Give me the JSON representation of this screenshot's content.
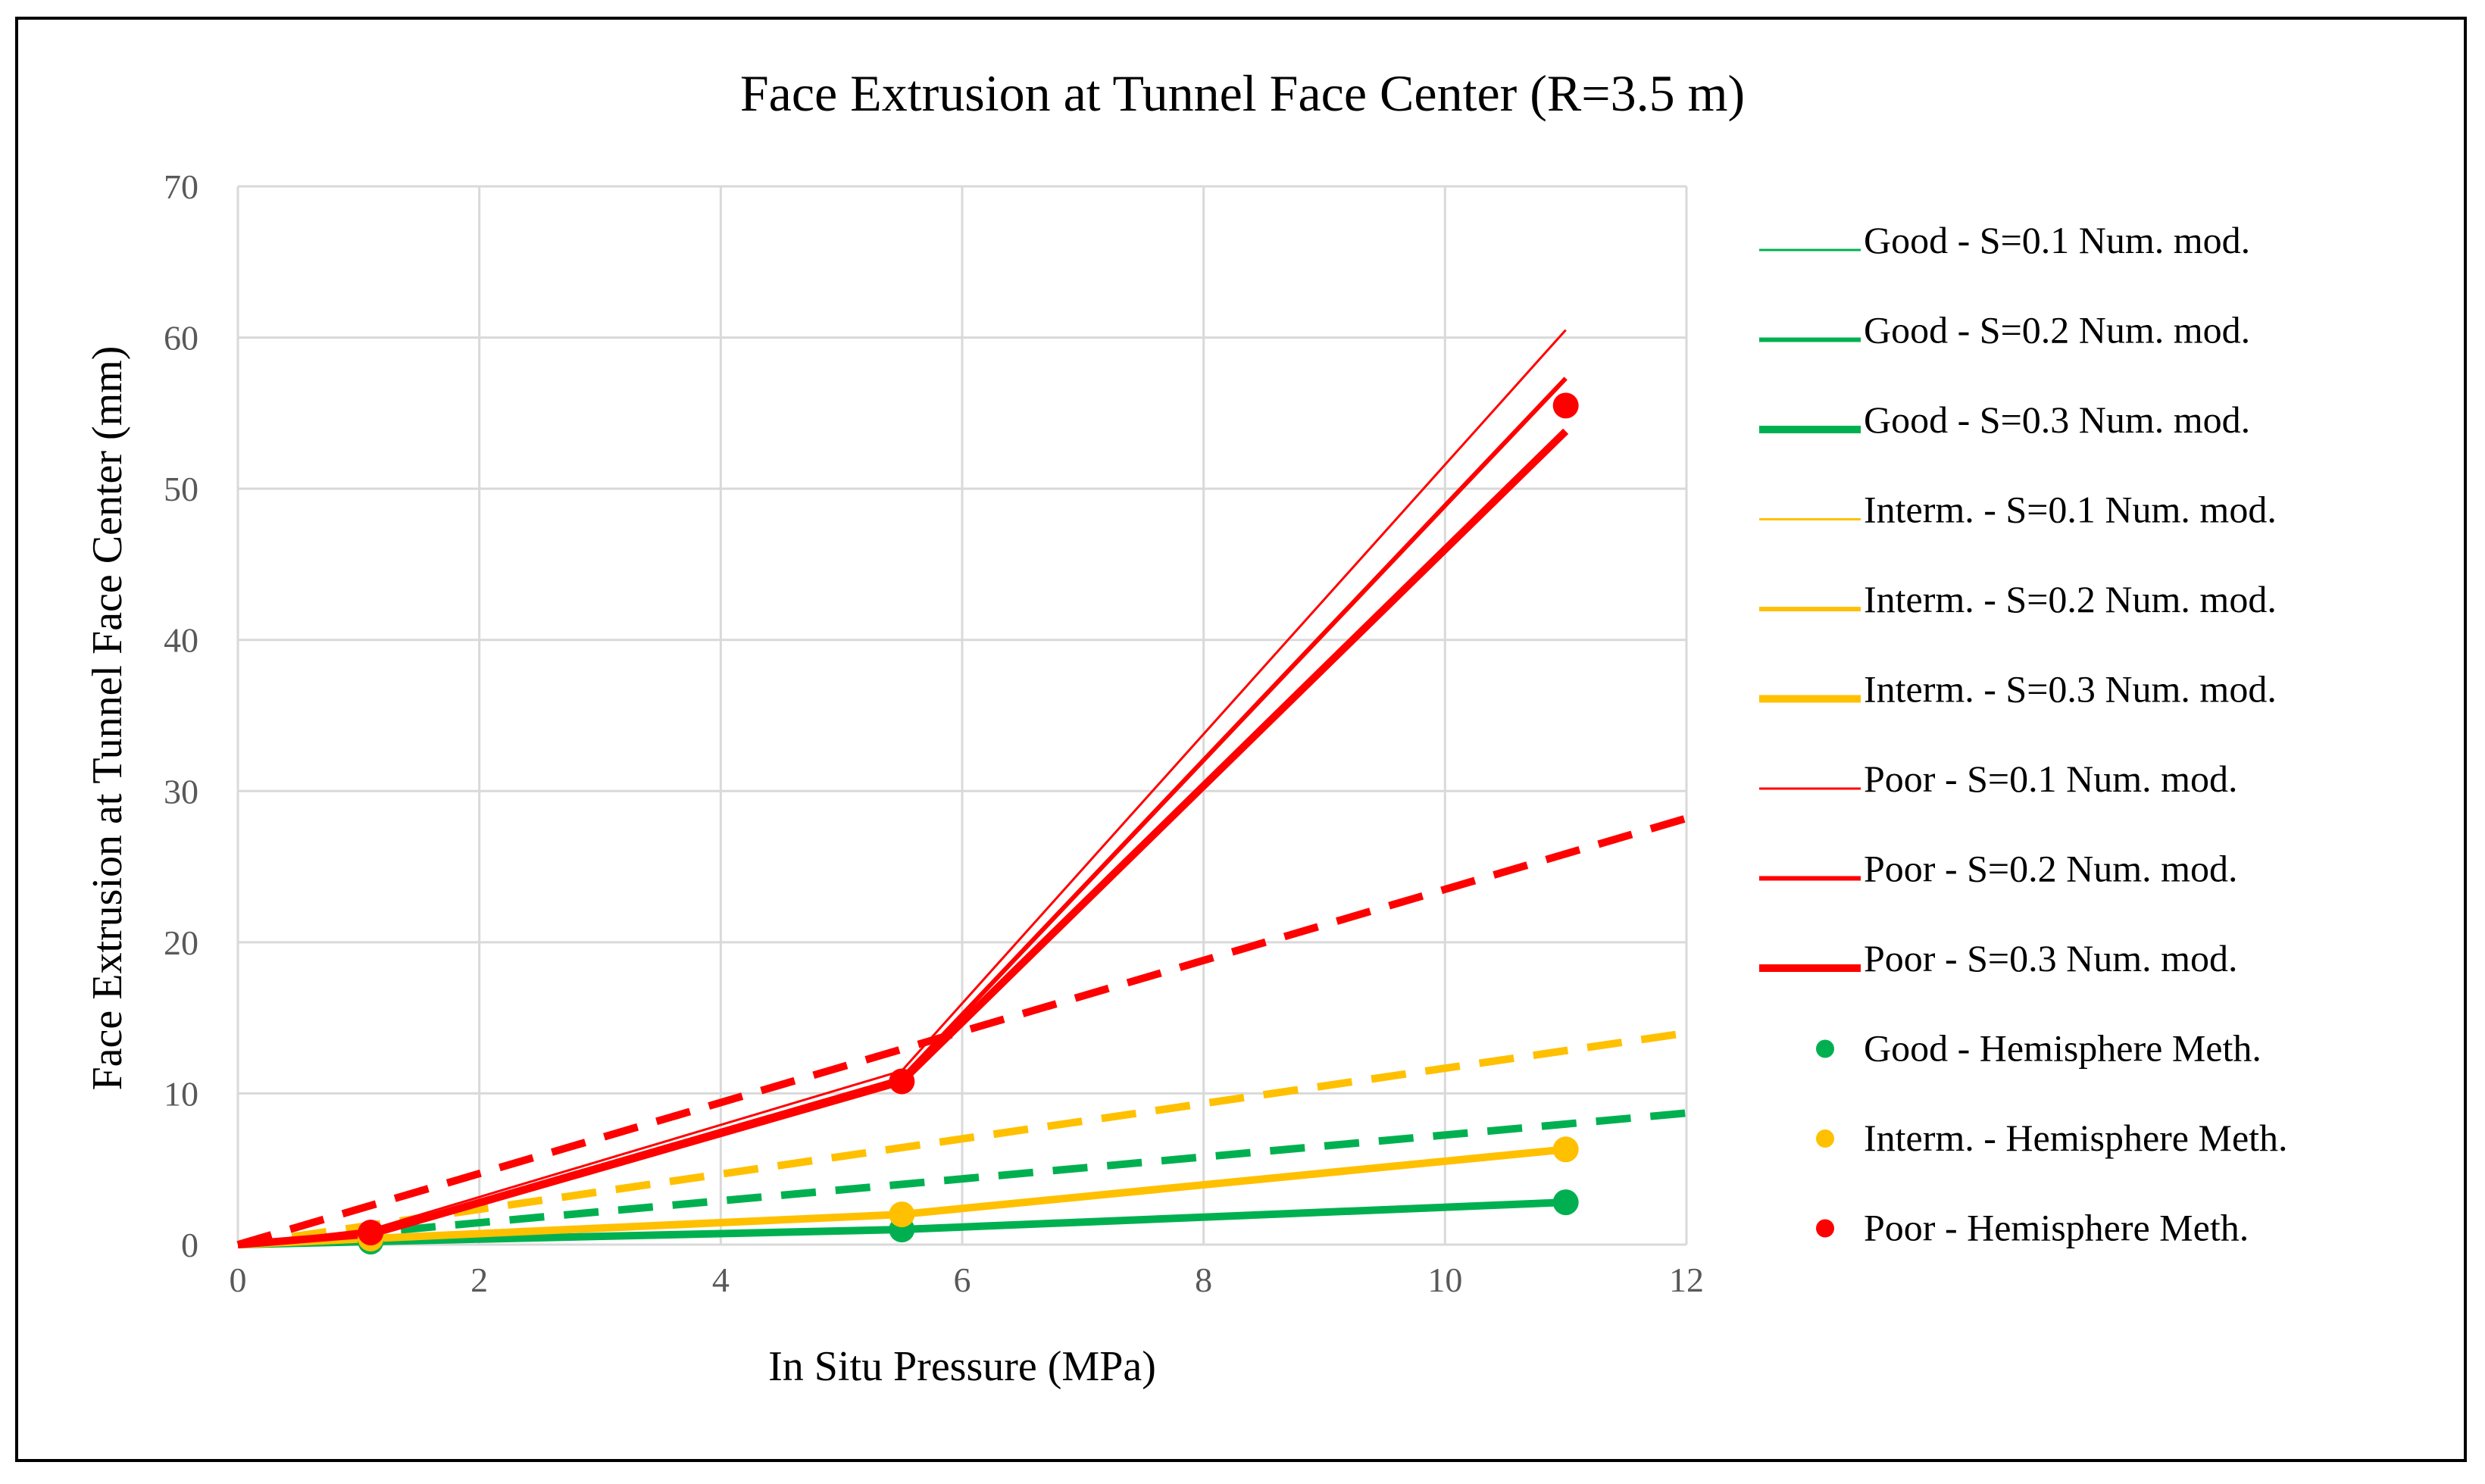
{
  "chart_data": {
    "type": "line",
    "title": "Face Extrusion at Tunnel Face Center (R=3.5 m)",
    "xlabel": "In Situ Pressure (MPa)",
    "ylabel": "Face Extrusion at Tunnel Face Center (mm)",
    "xlim": [
      0,
      12
    ],
    "ylim": [
      0,
      70
    ],
    "xticks": [
      0,
      2,
      4,
      6,
      8,
      10,
      12
    ],
    "yticks": [
      0,
      10,
      20,
      30,
      40,
      50,
      60,
      70
    ],
    "grid": true,
    "legend_position": "right",
    "colors": {
      "good": "#00b050",
      "interm": "#ffc000",
      "poor": "#ff0000",
      "grid": "#d9d9d9",
      "axis_text": "#595959"
    },
    "series": [
      {
        "name": "Good - S=0.1 Num. mod.",
        "rock": "good",
        "kind": "line",
        "weight": 1,
        "x": [
          0,
          1.1,
          5.5,
          11
        ],
        "y": [
          0,
          0.2,
          1.0,
          2.8
        ]
      },
      {
        "name": "Good - S=0.2 Num. mod.",
        "rock": "good",
        "kind": "line",
        "weight": 2,
        "x": [
          0,
          1.1,
          5.5,
          11
        ],
        "y": [
          0,
          0.2,
          1.0,
          2.8
        ]
      },
      {
        "name": "Good - S=0.3 Num. mod.",
        "rock": "good",
        "kind": "line",
        "weight": 3,
        "x": [
          0,
          1.1,
          5.5,
          11
        ],
        "y": [
          0,
          0.2,
          1.0,
          2.8
        ]
      },
      {
        "name": "Interm.  - S=0.1 Num. mod.",
        "rock": "interm",
        "kind": "line",
        "weight": 1,
        "x": [
          0,
          1.1,
          5.5,
          11
        ],
        "y": [
          0,
          0.4,
          2.0,
          6.3
        ]
      },
      {
        "name": "Interm.  - S=0.2 Num. mod.",
        "rock": "interm",
        "kind": "line",
        "weight": 2,
        "x": [
          0,
          1.1,
          5.5,
          11
        ],
        "y": [
          0,
          0.4,
          2.0,
          6.3
        ]
      },
      {
        "name": "Interm. - S=0.3 Num. mod.",
        "rock": "interm",
        "kind": "line",
        "weight": 3,
        "x": [
          0,
          1.1,
          5.5,
          11
        ],
        "y": [
          0,
          0.4,
          2.0,
          6.3
        ]
      },
      {
        "name": "Poor - S=0.1 Num. mod.",
        "rock": "poor",
        "kind": "line",
        "weight": 1,
        "x": [
          0,
          1.1,
          5.5,
          11
        ],
        "y": [
          0,
          1.0,
          11.5,
          60.5
        ]
      },
      {
        "name": "Poor - S=0.2 Num. mod.",
        "rock": "poor",
        "kind": "line",
        "weight": 2,
        "x": [
          0,
          1.1,
          5.5,
          11
        ],
        "y": [
          0,
          0.8,
          11.0,
          57.3
        ]
      },
      {
        "name": "Poor - S=0.3 Num. mod.",
        "rock": "poor",
        "kind": "line",
        "weight": 3,
        "x": [
          0,
          1.1,
          5.5,
          11
        ],
        "y": [
          0,
          0.7,
          10.8,
          53.8
        ]
      },
      {
        "name": "Good - Hemisphere Meth.",
        "rock": "good",
        "kind": "points",
        "x": [
          1.1,
          5.5,
          11
        ],
        "y": [
          0.2,
          1.0,
          2.8
        ],
        "trend_y_at_12": 8.7
      },
      {
        "name": "Interm. - Hemisphere Meth.",
        "rock": "interm",
        "kind": "points",
        "x": [
          1.1,
          5.5,
          11
        ],
        "y": [
          0.4,
          2.0,
          6.3
        ],
        "trend_y_at_12": 14.0
      },
      {
        "name": "Poor - Hemisphere Meth.",
        "rock": "poor",
        "kind": "points",
        "x": [
          1.1,
          5.5,
          11
        ],
        "y": [
          0.8,
          10.8,
          55.5
        ],
        "trend_y_at_12": 28.2
      }
    ]
  }
}
